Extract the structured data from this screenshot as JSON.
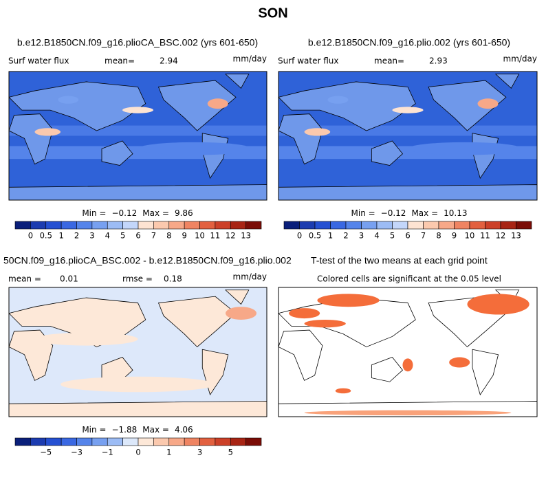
{
  "title": "SON",
  "panels": [
    {
      "title": "b.e12.B1850CN.f09_g16.plioCA_BSC.002 (yrs 601-650)",
      "label": "Surf water flux",
      "stat1_label": "mean=",
      "stat1": "2.94",
      "units": "mm/day",
      "min_label": "Min =",
      "min": "−0.12",
      "max_label": "Max =",
      "max": "9.86",
      "colorbar": 0
    },
    {
      "title": "b.e12.B1850CN.f09_g16.plio.002 (yrs 601-650)",
      "label": "Surf water flux",
      "stat1_label": "mean=",
      "stat1": "2.93",
      "units": "mm/day",
      "min_label": "Min =",
      "min": "−0.12",
      "max_label": "Max =",
      "max": "10.13",
      "colorbar": 0
    },
    {
      "title": "50CN.f09_g16.plioCA_BSC.002 - b.e12.B1850CN.f09_g16.plio.002",
      "stat1_label": "mean =",
      "stat1": "0.01",
      "stat2_label": "rmse =",
      "stat2": "0.18",
      "units": "mm/day",
      "min_label": "Min =",
      "min": "−1.88",
      "max_label": "Max =",
      "max": "4.06",
      "colorbar": 1
    },
    {
      "title": "T-test of the two means at each grid point",
      "note": "Colored cells are significant at the 0.05 level"
    }
  ],
  "colorbars": [
    {
      "colors": [
        "#0a1f7a",
        "#1c3cb0",
        "#2550d2",
        "#3a68e2",
        "#5584ea",
        "#77a0f0",
        "#9cbcf5",
        "#c3d6fa",
        "#fde3d2",
        "#fbc9ae",
        "#f7a888",
        "#ef8462",
        "#e2603f",
        "#cc4028",
        "#a82414",
        "#7a0c06"
      ],
      "labels": [
        "0",
        "0.5",
        "1",
        "2",
        "3",
        "4",
        "5",
        "6",
        "7",
        "8",
        "9",
        "10",
        "11",
        "12",
        "13"
      ]
    },
    {
      "colors": [
        "#0a1f7a",
        "#1c3cb0",
        "#2550d2",
        "#3a68e2",
        "#5584ea",
        "#77a0f0",
        "#9cbcf5",
        "#dce8fa",
        "#fde8d8",
        "#fbc9ae",
        "#f7a888",
        "#ef8462",
        "#e2603f",
        "#cc4028",
        "#a82414",
        "#7a0c06"
      ],
      "labels": [
        null,
        "−5",
        null,
        "−3",
        null,
        "−1",
        null,
        "0",
        null,
        "1",
        null,
        "3",
        null,
        "5",
        null
      ]
    }
  ]
}
